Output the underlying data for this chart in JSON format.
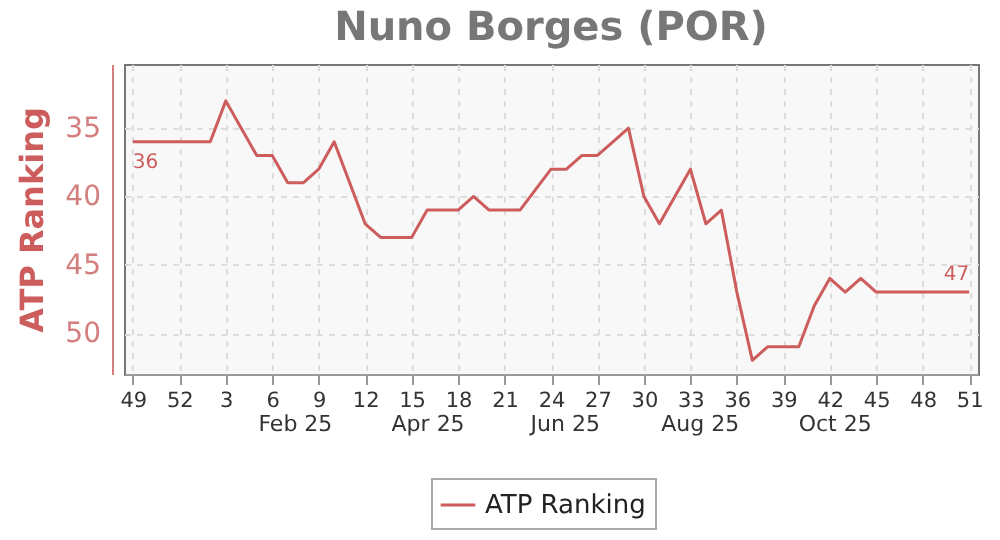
{
  "chart_data": {
    "type": "line",
    "title": "Nuno Borges (POR)",
    "ylabel": "ATP Ranking",
    "x": [
      "2024-12-02",
      "2024-12-09",
      "2024-12-16",
      "2024-12-23",
      "2024-12-30",
      "2025-01-06",
      "2025-01-13",
      "2025-01-20",
      "2025-01-27",
      "2025-02-03",
      "2025-02-10",
      "2025-02-17",
      "2025-02-24",
      "2025-03-03",
      "2025-03-10",
      "2025-03-17",
      "2025-03-24",
      "2025-03-31",
      "2025-04-07",
      "2025-04-14",
      "2025-04-21",
      "2025-04-28",
      "2025-05-05",
      "2025-05-12",
      "2025-05-19",
      "2025-05-26",
      "2025-06-02",
      "2025-06-09",
      "2025-06-16",
      "2025-06-23",
      "2025-06-30",
      "2025-07-07",
      "2025-07-14",
      "2025-07-21",
      "2025-07-28",
      "2025-08-04",
      "2025-08-11",
      "2025-08-18",
      "2025-08-25",
      "2025-09-01",
      "2025-09-08",
      "2025-09-15",
      "2025-09-22",
      "2025-09-29",
      "2025-10-06",
      "2025-10-13",
      "2025-10-20",
      "2025-10-27",
      "2025-11-03",
      "2025-11-10",
      "2025-11-17",
      "2025-11-24",
      "2025-12-01",
      "2025-12-08",
      "2025-12-15"
    ],
    "series": [
      {
        "name": "ATP Ranking",
        "color": "#cd5c5c",
        "values": [
          36,
          36,
          36,
          36,
          36,
          36,
          33,
          35,
          37,
          37,
          39,
          39,
          38,
          36,
          39,
          42,
          43,
          43,
          43,
          41,
          41,
          41,
          40,
          41,
          41,
          41,
          39.5,
          38,
          38,
          37,
          37,
          36,
          35,
          40,
          42,
          40,
          38,
          42,
          41,
          47,
          52,
          51,
          51,
          51,
          48,
          46,
          47,
          46,
          47,
          47,
          47,
          47,
          47,
          47,
          47
        ],
        "value_labels": [
          "36",
          null,
          null,
          null,
          null,
          null,
          null,
          null,
          null,
          null,
          null,
          null,
          null,
          null,
          null,
          null,
          null,
          null,
          null,
          null,
          null,
          null,
          null,
          null,
          null,
          null,
          null,
          null,
          null,
          null,
          null,
          null,
          null,
          null,
          null,
          null,
          null,
          null,
          null,
          null,
          null,
          null,
          null,
          null,
          null,
          null,
          null,
          null,
          null,
          null,
          null,
          null,
          null,
          null,
          "47"
        ]
      }
    ],
    "xlim": [
      "2024-11-28",
      "2025-12-19"
    ],
    "xticks": [
      {
        "value": "2024-12-02",
        "label": "49"
      },
      {
        "value": "2024-12-23",
        "label": "52"
      },
      {
        "value": "2025-01-13",
        "label": "3"
      },
      {
        "value": "2025-02-03",
        "label": "6"
      },
      {
        "value": "2025-02-24",
        "label": "9"
      },
      {
        "value": "2025-03-17",
        "label": "12"
      },
      {
        "value": "2025-04-07",
        "label": "15"
      },
      {
        "value": "2025-04-28",
        "label": "18"
      },
      {
        "value": "2025-05-19",
        "label": "21"
      },
      {
        "value": "2025-06-09",
        "label": "24"
      },
      {
        "value": "2025-06-30",
        "label": "27"
      },
      {
        "value": "2025-07-21",
        "label": "30"
      },
      {
        "value": "2025-08-11",
        "label": "33"
      },
      {
        "value": "2025-09-01",
        "label": "36"
      },
      {
        "value": "2025-09-22",
        "label": "39"
      },
      {
        "value": "2025-10-13",
        "label": "42"
      },
      {
        "value": "2025-11-03",
        "label": "45"
      },
      {
        "value": "2025-11-24",
        "label": "48"
      },
      {
        "value": "2025-12-15",
        "label": "51"
      }
    ],
    "ylim": [
      53,
      30.3
    ],
    "yticks": [
      35,
      40,
      45,
      50
    ],
    "x2lim": [
      "2024-11-28",
      "2025-12-19"
    ],
    "x2ticks": [
      {
        "value": "2025-02-13",
        "label": "Feb 25"
      },
      {
        "value": "2025-04-14",
        "label": "Apr 25"
      },
      {
        "value": "2025-06-15",
        "label": "Jun 25"
      },
      {
        "value": "2025-08-15",
        "label": "Aug 25"
      },
      {
        "value": "2025-10-15",
        "label": "Oct 25"
      }
    ],
    "grid": true,
    "legend": "bottom",
    "line_style": "solid",
    "marker": "none"
  }
}
